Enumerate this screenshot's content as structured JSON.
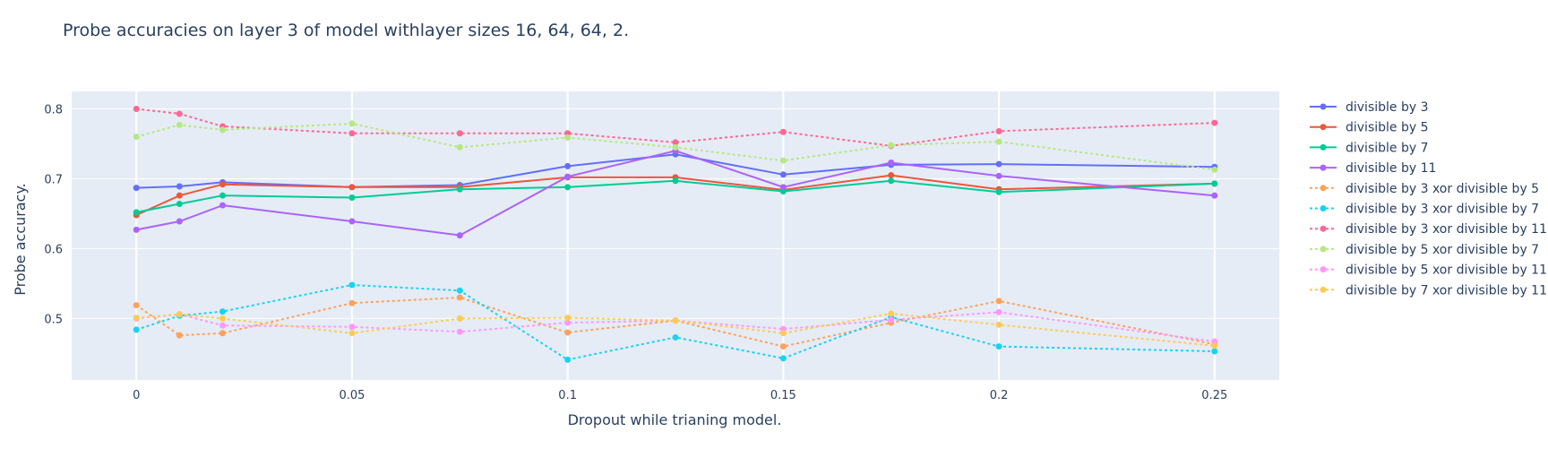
{
  "chart_data": {
    "type": "line",
    "title": "Probe accuracies on layer 3 of model withlayer sizes 16, 64, 64, 2.",
    "xlabel": "Dropout while trianing model.",
    "ylabel": "Probe accuracy.",
    "xlim": [
      -0.015,
      0.265
    ],
    "ylim": [
      0.412,
      0.825
    ],
    "xticks": [
      0,
      0.05,
      0.1,
      0.15,
      0.2,
      0.25
    ],
    "xtick_labels": [
      "0",
      "0.05",
      "0.1",
      "0.15",
      "0.2",
      "0.25"
    ],
    "yticks": [
      0.5,
      0.6,
      0.7,
      0.8
    ],
    "ytick_labels": [
      "0.5",
      "0.6",
      "0.7",
      "0.8"
    ],
    "grid": true,
    "legend_position": "right",
    "plot_background": "#e5ecf6",
    "x": [
      0,
      0.01,
      0.02,
      0.05,
      0.075,
      0.1,
      0.125,
      0.15,
      0.175,
      0.2,
      0.25
    ],
    "series": [
      {
        "name": "divisible by 3",
        "color": "#636efa",
        "dash": "solid",
        "values": [
          0.687,
          0.689,
          0.695,
          0.688,
          0.691,
          0.718,
          0.735,
          0.706,
          0.72,
          0.721,
          0.717
        ]
      },
      {
        "name": "divisible by 5",
        "color": "#EF553B",
        "dash": "solid",
        "values": [
          0.648,
          0.676,
          0.692,
          0.688,
          0.688,
          0.702,
          0.702,
          0.684,
          0.705,
          0.685,
          0.693
        ]
      },
      {
        "name": "divisible by 7",
        "color": "#00cc96",
        "dash": "solid",
        "values": [
          0.652,
          0.664,
          0.676,
          0.673,
          0.685,
          0.688,
          0.697,
          0.682,
          0.697,
          0.681,
          0.693
        ]
      },
      {
        "name": "divisible by 11",
        "color": "#ab63fa",
        "dash": "solid",
        "values": [
          0.627,
          0.639,
          0.662,
          0.639,
          0.619,
          0.703,
          0.74,
          0.688,
          0.723,
          0.704,
          0.676
        ]
      },
      {
        "name": "divisible by 3 xor divisible by 5",
        "color": "#FFA15A",
        "dash": "dot",
        "values": [
          0.519,
          0.476,
          0.479,
          0.522,
          0.53,
          0.48,
          0.497,
          0.46,
          0.494,
          0.525,
          0.463
        ]
      },
      {
        "name": "divisible by 3 xor divisible by 7",
        "color": "#19d3f3",
        "dash": "dot",
        "values": [
          0.484,
          0.504,
          0.51,
          0.548,
          0.54,
          0.441,
          0.473,
          0.443,
          0.502,
          0.46,
          0.453
        ]
      },
      {
        "name": "divisible by 3 xor divisible by 11",
        "color": "#FF6692",
        "dash": "dot",
        "values": [
          0.8,
          0.793,
          0.775,
          0.765,
          0.765,
          0.765,
          0.752,
          0.767,
          0.747,
          0.768,
          0.78
        ]
      },
      {
        "name": "divisible by 5 xor divisible by 7",
        "color": "#B6E880",
        "dash": "dot",
        "values": [
          0.76,
          0.777,
          0.77,
          0.779,
          0.745,
          0.759,
          0.745,
          0.726,
          0.748,
          0.753,
          0.713
        ]
      },
      {
        "name": "divisible by 5 xor divisible by 11",
        "color": "#FF97FF",
        "dash": "dot",
        "values": [
          0.5,
          0.506,
          0.49,
          0.488,
          0.481,
          0.494,
          0.497,
          0.485,
          0.498,
          0.509,
          0.467
        ]
      },
      {
        "name": "divisible by 7 xor divisible by 11",
        "color": "#FECB52",
        "dash": "dot",
        "values": [
          0.501,
          0.506,
          0.5,
          0.479,
          0.5,
          0.501,
          0.497,
          0.479,
          0.507,
          0.491,
          0.461
        ]
      }
    ]
  }
}
